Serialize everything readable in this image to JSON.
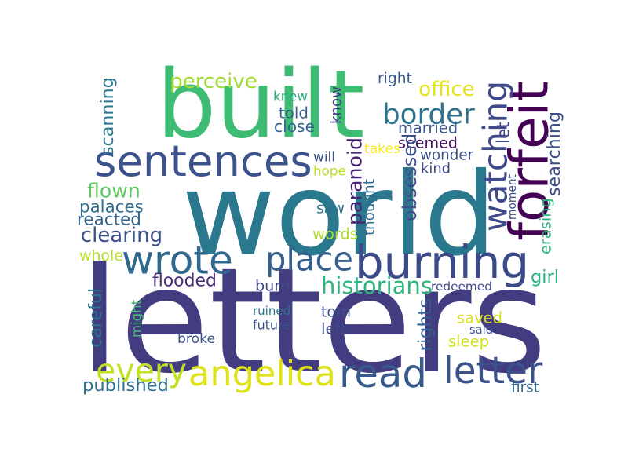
{
  "words": [
    {
      "text": "letters",
      "color": "#423c81",
      "vertical": false
    },
    {
      "text": "world",
      "color": "#2a788e",
      "vertical": false
    },
    {
      "text": "built",
      "color": "#3fbc73",
      "vertical": false
    },
    {
      "text": "sentences",
      "color": "#3b528b",
      "vertical": false
    },
    {
      "text": "wrote",
      "color": "#31688e",
      "vertical": false
    },
    {
      "text": "burning",
      "color": "#3b4a88",
      "vertical": false
    },
    {
      "text": "forfeit",
      "color": "#440154",
      "vertical": true
    },
    {
      "text": "watching",
      "color": "#3e4a89",
      "vertical": true
    },
    {
      "text": "place",
      "color": "#355f8d",
      "vertical": false
    },
    {
      "text": "read",
      "color": "#38598c",
      "vertical": false
    },
    {
      "text": "letter",
      "color": "#3b528b",
      "vertical": false
    },
    {
      "text": "angelica",
      "color": "#dde318",
      "vertical": false
    },
    {
      "text": "every",
      "color": "#c2df23",
      "vertical": false
    },
    {
      "text": "border",
      "color": "#2c738e",
      "vertical": false
    },
    {
      "text": "perceive",
      "color": "#a2da37",
      "vertical": false
    },
    {
      "text": "office",
      "color": "#e5e419",
      "vertical": false
    },
    {
      "text": "scanning",
      "color": "#2a778e",
      "vertical": true
    },
    {
      "text": "knew",
      "color": "#2ab07f",
      "vertical": false
    },
    {
      "text": "told",
      "color": "#33638d",
      "vertical": false
    },
    {
      "text": "close",
      "color": "#31668e",
      "vertical": false
    },
    {
      "text": "know",
      "color": "#404387",
      "vertical": true
    },
    {
      "text": "right",
      "color": "#38588c",
      "vertical": false
    },
    {
      "text": "married",
      "color": "#39558c",
      "vertical": false
    },
    {
      "text": "seemed",
      "color": "#471164",
      "vertical": false
    },
    {
      "text": "wonder",
      "color": "#3a538b",
      "vertical": false
    },
    {
      "text": "kind",
      "color": "#3e4c8a",
      "vertical": false
    },
    {
      "text": "paranoid",
      "color": "#482374",
      "vertical": true
    },
    {
      "text": "obsessed",
      "color": "#3d4e8a",
      "vertical": true
    },
    {
      "text": "takes",
      "color": "#fde725",
      "vertical": false
    },
    {
      "text": "let",
      "color": "#3e4989",
      "vertical": true
    },
    {
      "text": "searching",
      "color": "#3d4d8a",
      "vertical": true
    },
    {
      "text": "will",
      "color": "#3a538b",
      "vertical": false
    },
    {
      "text": "hope",
      "color": "#bade28",
      "vertical": false
    },
    {
      "text": "thought",
      "color": "#2f6c8e",
      "vertical": true
    },
    {
      "text": "flown",
      "color": "#5ec962",
      "vertical": false
    },
    {
      "text": "palaces",
      "color": "#2f6b8e",
      "vertical": false
    },
    {
      "text": "reacted",
      "color": "#32648e",
      "vertical": false
    },
    {
      "text": "clearing",
      "color": "#3b518b",
      "vertical": false
    },
    {
      "text": "saw",
      "color": "#2d718e",
      "vertical": false
    },
    {
      "text": "words",
      "color": "#addc30",
      "vertical": false
    },
    {
      "text": "moment",
      "color": "#3e4989",
      "vertical": true
    },
    {
      "text": "erasing",
      "color": "#2fb47c",
      "vertical": true
    },
    {
      "text": "whole",
      "color": "#b5de2b",
      "vertical": false
    },
    {
      "text": "flooded",
      "color": "#472c7a",
      "vertical": false
    },
    {
      "text": "historians",
      "color": "#2fb47c",
      "vertical": false
    },
    {
      "text": "redeemed",
      "color": "#3e4a89",
      "vertical": false
    },
    {
      "text": "girl",
      "color": "#29af7f",
      "vertical": false
    },
    {
      "text": "careful",
      "color": "#2b748e",
      "vertical": true
    },
    {
      "text": "might",
      "color": "#42be71",
      "vertical": true
    },
    {
      "text": "burn",
      "color": "#3e4c8a",
      "vertical": false
    },
    {
      "text": "ruined",
      "color": "#2a768e",
      "vertical": false
    },
    {
      "text": "future",
      "color": "#3b528b",
      "vertical": false
    },
    {
      "text": "torn",
      "color": "#3b518b",
      "vertical": false
    },
    {
      "text": "left",
      "color": "#3e4989",
      "vertical": false
    },
    {
      "text": "rights",
      "color": "#35608d",
      "vertical": true
    },
    {
      "text": "saved",
      "color": "#d8e219",
      "vertical": false
    },
    {
      "text": "said",
      "color": "#3b528b",
      "vertical": false
    },
    {
      "text": "sleep",
      "color": "#d2e21b",
      "vertical": false
    },
    {
      "text": "broke",
      "color": "#3b528b",
      "vertical": false
    },
    {
      "text": "published",
      "color": "#2c718e",
      "vertical": false
    },
    {
      "text": "first",
      "color": "#31668e",
      "vertical": false
    }
  ]
}
